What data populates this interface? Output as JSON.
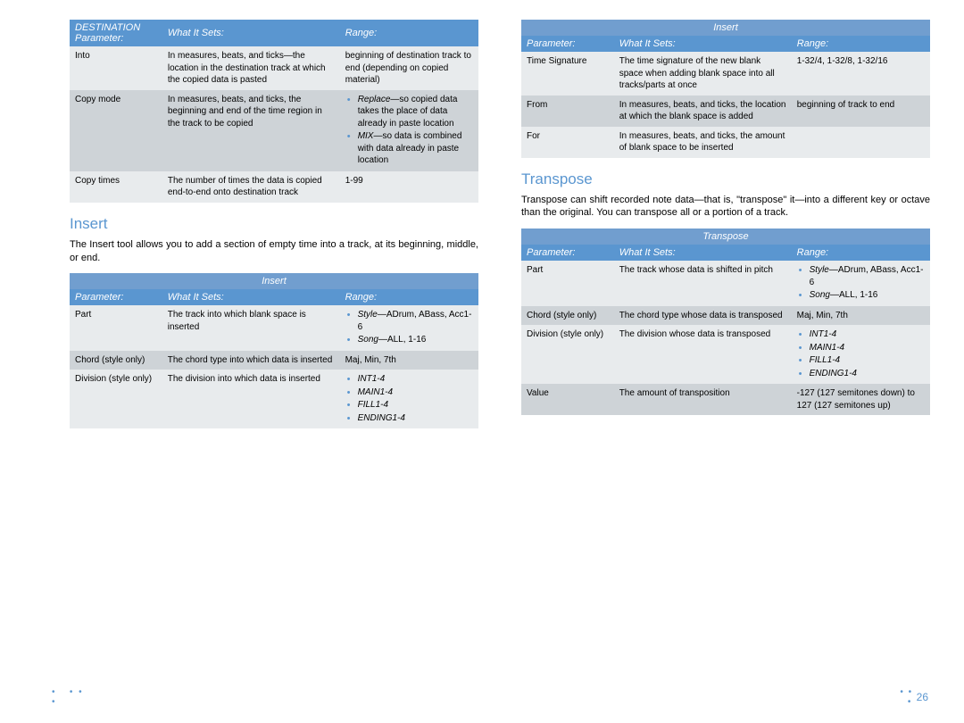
{
  "colors": {
    "accent": "#5a96d0",
    "header_bg": "#5a96d0",
    "title_bg": "#719ecf",
    "row_light": "#e8ebed",
    "row_dark": "#ced3d7",
    "header_text": "#ffffff",
    "body_text": "#000000"
  },
  "page_number": "26",
  "left": {
    "table1": {
      "header": {
        "c1": "DESTINATION Parameter:",
        "c2": "What It Sets:",
        "c3": "Range:"
      },
      "rows": [
        {
          "param": "Into",
          "what": "In measures, beats, and ticks—the location in the destination track at which the copied data is pasted",
          "range_plain": "beginning of destination track to end (depending on copied material)"
        },
        {
          "param": "Copy mode",
          "what": "In measures, beats, and ticks, the beginning and end of the time region in the track to be copied",
          "range_bullets": [
            {
              "lead_it": "Replace",
              "rest": "—so copied data takes the place of data already in paste location"
            },
            {
              "lead_it": "MIX",
              "rest": "—so data is combined with data already in paste location"
            }
          ]
        },
        {
          "param": "Copy times",
          "what": "The number of times the data is copied end-to-end onto destination track",
          "range_plain": "1-99"
        }
      ]
    },
    "insert_heading": "Insert",
    "insert_text": "The Insert tool allows you to add a section of empty time into a track, at its beginning, middle, or end.",
    "table2": {
      "title": "Insert",
      "header": {
        "c1": "Parameter:",
        "c2": "What It Sets:",
        "c3": "Range:"
      },
      "rows": [
        {
          "param": "Part",
          "what": "The track into which blank space is inserted",
          "range_bullets": [
            {
              "lead_it": "Style",
              "rest": "—ADrum, ABass, Acc1-6"
            },
            {
              "lead_it": "Song",
              "rest": "—ALL, 1-16"
            }
          ]
        },
        {
          "param": "Chord (style only)",
          "what": "The chord type into which data is inserted",
          "range_plain": "Maj, Min, 7th"
        },
        {
          "param": "Division (style only)",
          "what": "The division into which data is inserted",
          "range_bullets": [
            {
              "lead_it": "INT1-4",
              "rest": ""
            },
            {
              "lead_it": "MAIN1-4",
              "rest": ""
            },
            {
              "lead_it": "FILL1-4",
              "rest": ""
            },
            {
              "lead_it": "ENDING1-4",
              "rest": ""
            }
          ]
        }
      ]
    }
  },
  "right": {
    "table1": {
      "title": "Insert",
      "header": {
        "c1": "Parameter:",
        "c2": "What It Sets:",
        "c3": "Range:"
      },
      "rows": [
        {
          "param": "Time Signature",
          "what": "The time signature of the new blank space when adding blank space into all tracks/parts at once",
          "range_plain": "1-32/4, 1-32/8, 1-32/16"
        },
        {
          "param": "From",
          "what": "In measures, beats, and ticks, the location at which the blank space is added",
          "range_plain": "beginning of track to end"
        },
        {
          "param": "For",
          "what": "In measures, beats, and ticks, the amount of blank space to be inserted",
          "range_plain": ""
        }
      ]
    },
    "transpose_heading": "Transpose",
    "transpose_text": "Transpose can shift recorded note data—that is, \"transpose\" it—into a different key or octave than the original. You can transpose all or a portion of a track.",
    "table2": {
      "title": "Transpose",
      "header": {
        "c1": "Parameter:",
        "c2": "What It Sets:",
        "c3": "Range:"
      },
      "rows": [
        {
          "param": "Part",
          "what": "The track whose data is shifted in pitch",
          "range_bullets": [
            {
              "lead_it": "Style",
              "rest": "—ADrum, ABass, Acc1-6"
            },
            {
              "lead_it": "Song",
              "rest": "—ALL, 1-16"
            }
          ]
        },
        {
          "param": "Chord (style only)",
          "what": "The chord type whose data is transposed",
          "range_plain": "Maj, Min, 7th"
        },
        {
          "param": "Division (style only)",
          "what": "The division whose data is transposed",
          "range_bullets": [
            {
              "lead_it": "INT1-4",
              "rest": ""
            },
            {
              "lead_it": "MAIN1-4",
              "rest": ""
            },
            {
              "lead_it": "FILL1-4",
              "rest": ""
            },
            {
              "lead_it": "ENDING1-4",
              "rest": ""
            }
          ]
        },
        {
          "param": "Value",
          "what": "The amount of transposition",
          "range_plain": "-127 (127 semitones down) to 127 (127 semitones up)"
        }
      ]
    }
  }
}
